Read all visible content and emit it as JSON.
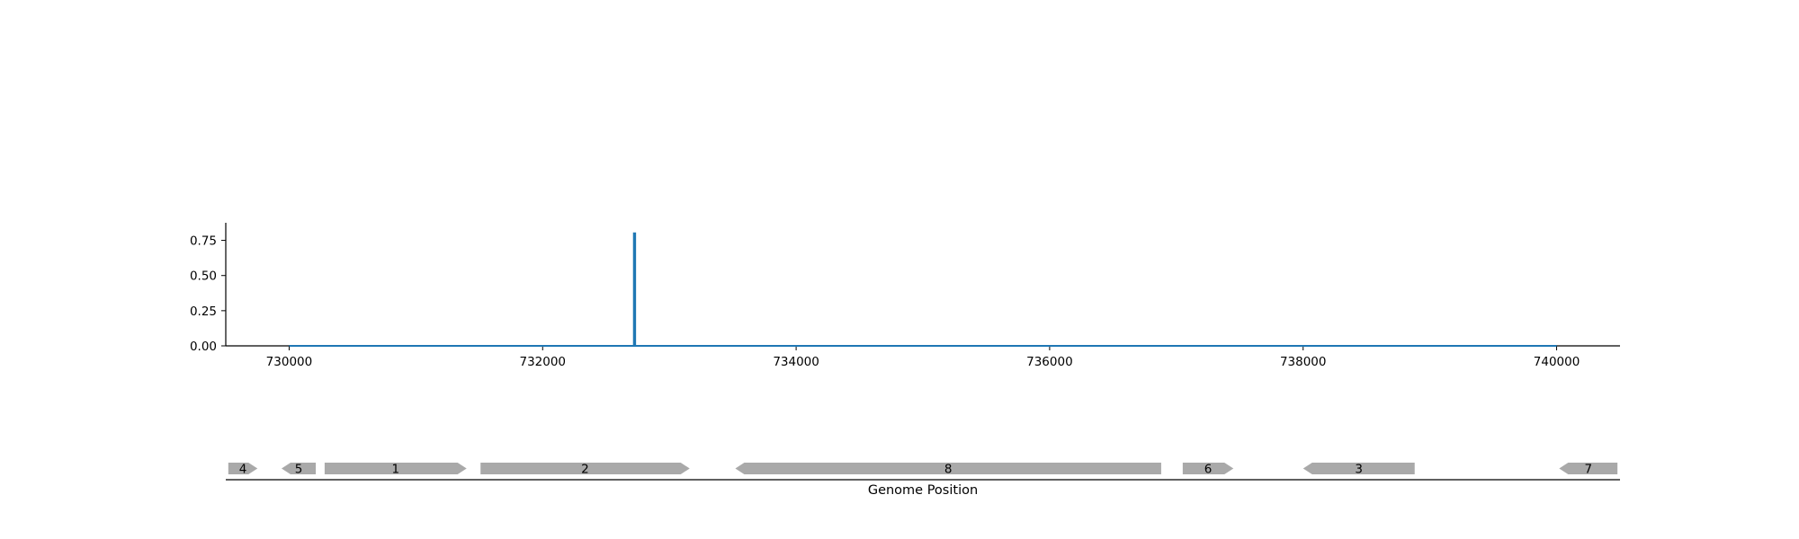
{
  "chart_data": [
    {
      "type": "line",
      "title": "",
      "xlabel": "",
      "ylabel": "",
      "xlim": [
        729500,
        740500
      ],
      "ylim": [
        0,
        0.875
      ],
      "x_ticks": [
        "730000",
        "732000",
        "734000",
        "736000",
        "738000",
        "740000"
      ],
      "y_ticks": [
        "0.00",
        "0.25",
        "0.50",
        "0.75"
      ],
      "grid": false,
      "color": "#1f77b4",
      "series": [
        {
          "x": [
            730000,
            732720,
            732720,
            732730,
            732730,
            740000
          ],
          "values": [
            0,
            0,
            0.8,
            0.8,
            0,
            0
          ]
        }
      ]
    },
    {
      "type": "gene-track",
      "xlabel": "Genome Position",
      "xlim": [
        729500,
        740500
      ],
      "color": "#a9a9a9",
      "genes": [
        {
          "label": "4",
          "start": 729520,
          "end": 729750,
          "strand": "+"
        },
        {
          "label": "5",
          "start": 729940,
          "end": 730210,
          "strand": "-"
        },
        {
          "label": "1",
          "start": 730280,
          "end": 731400,
          "strand": "+"
        },
        {
          "label": "2",
          "start": 731510,
          "end": 733160,
          "strand": "+"
        },
        {
          "label": "8",
          "start": 733520,
          "end": 736880,
          "strand": "-"
        },
        {
          "label": "6",
          "start": 737050,
          "end": 737450,
          "strand": "+"
        },
        {
          "label": "3",
          "start": 738000,
          "end": 738880,
          "strand": "-"
        },
        {
          "label": "7",
          "start": 740020,
          "end": 740480,
          "strand": "-"
        }
      ]
    }
  ]
}
